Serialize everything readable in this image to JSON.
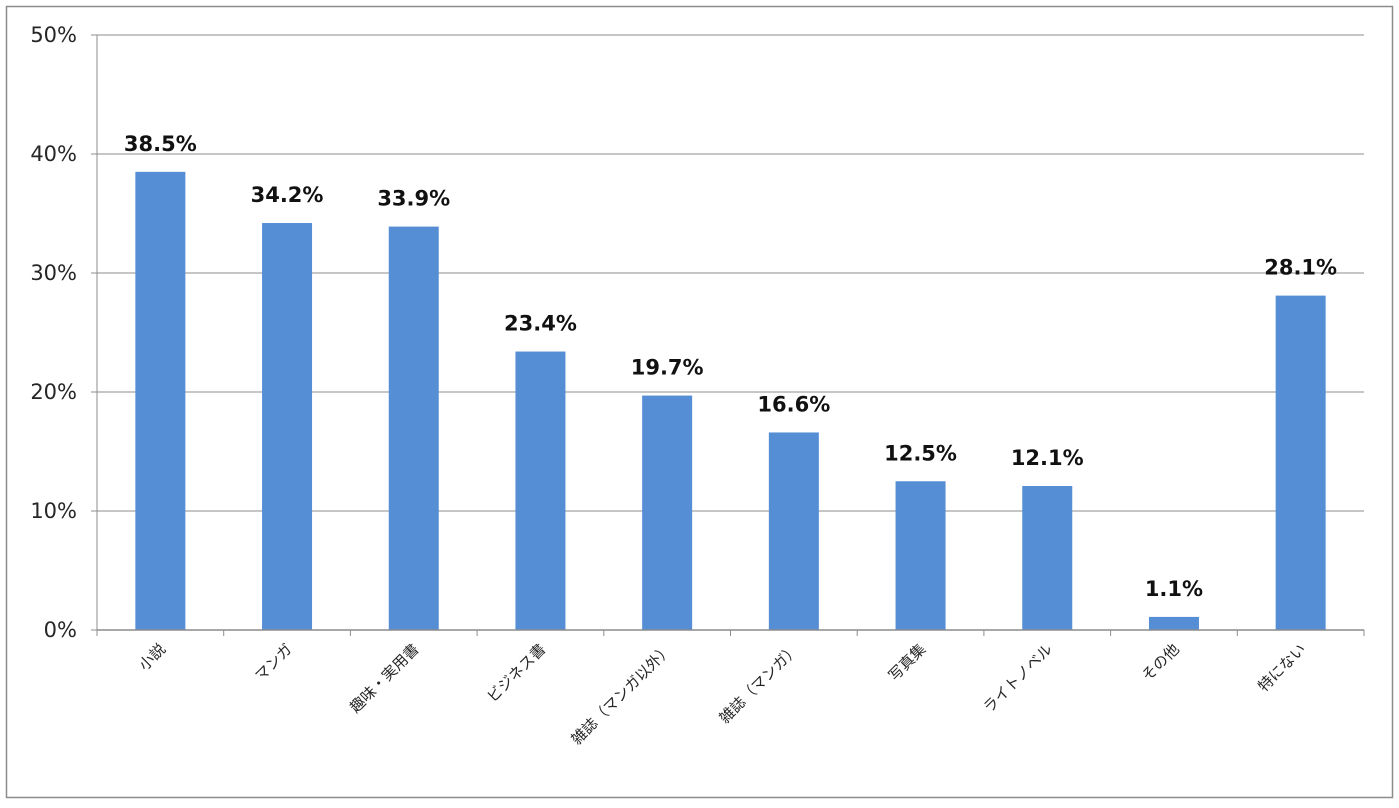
{
  "chart_data": {
    "type": "bar",
    "categories": [
      "小説",
      "マンガ",
      "趣味・実用書",
      "ビジネス書",
      "雑誌（マンガ以外）",
      "雑誌（マンガ）",
      "写真集",
      "ライトノベル",
      "その他",
      "特にない"
    ],
    "values": [
      38.5,
      34.2,
      33.9,
      23.4,
      19.7,
      16.6,
      12.5,
      12.1,
      1.1,
      28.1
    ],
    "data_labels": [
      "38.5%",
      "34.2%",
      "33.9%",
      "23.4%",
      "19.7%",
      "16.6%",
      "12.5%",
      "12.1%",
      "1.1%",
      "28.1%"
    ],
    "ylim": [
      0,
      50
    ],
    "yticks": [
      0,
      10,
      20,
      30,
      40,
      50
    ],
    "ytick_labels": [
      "0%",
      "10%",
      "20%",
      "30%",
      "40%",
      "50%"
    ],
    "title": "",
    "xlabel": "",
    "ylabel": "",
    "grid": true,
    "legend": "none",
    "colors": {
      "bar": "#558ED5",
      "grid": "#8C8C8C",
      "frame": "#8C8C8C"
    }
  }
}
